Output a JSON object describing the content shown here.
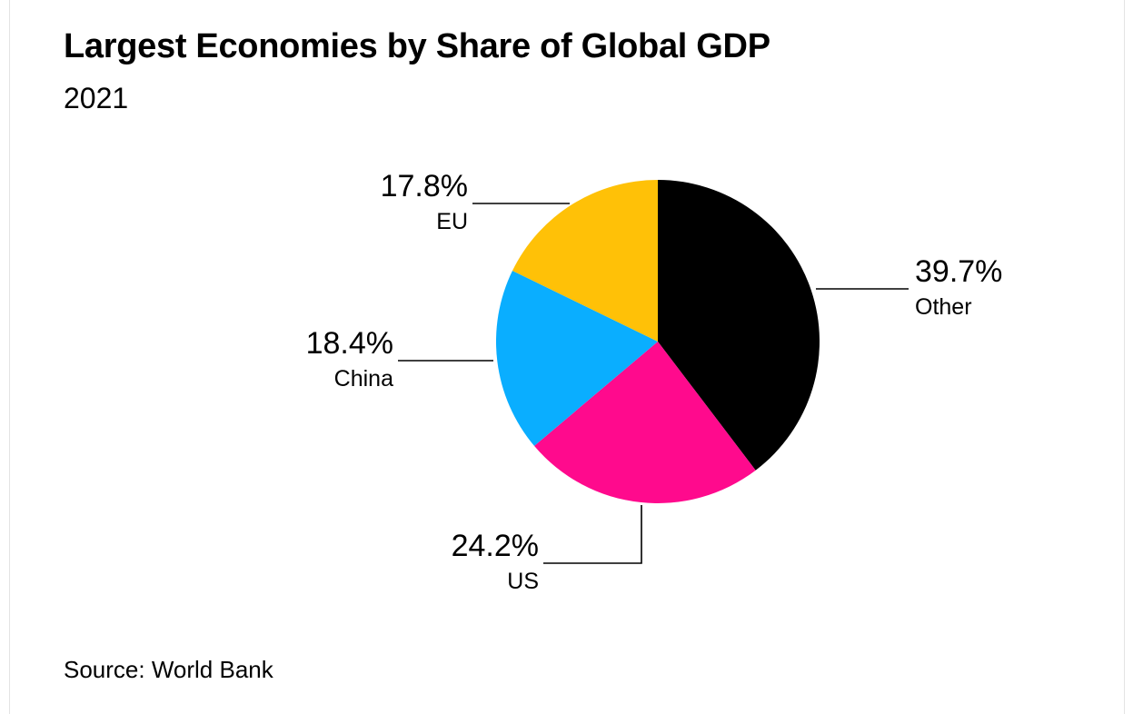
{
  "title": "Largest Economies by Share of Global GDP",
  "subtitle": "2021",
  "source": "Source: World Bank",
  "chart_data": {
    "type": "pie",
    "title": "Largest Economies by Share of Global GDP",
    "subtitle": "2021",
    "slices": [
      {
        "label": "Other",
        "value": 39.7,
        "display": "39.7%",
        "color": "#000000"
      },
      {
        "label": "US",
        "value": 24.2,
        "display": "24.2%",
        "color": "#FF0A8D"
      },
      {
        "label": "China",
        "value": 18.4,
        "display": "18.4%",
        "color": "#0AAEFF"
      },
      {
        "label": "EU",
        "value": 17.8,
        "display": "17.8%",
        "color": "#FFC107"
      }
    ],
    "start": "12 o'clock",
    "direction": "clockwise"
  }
}
